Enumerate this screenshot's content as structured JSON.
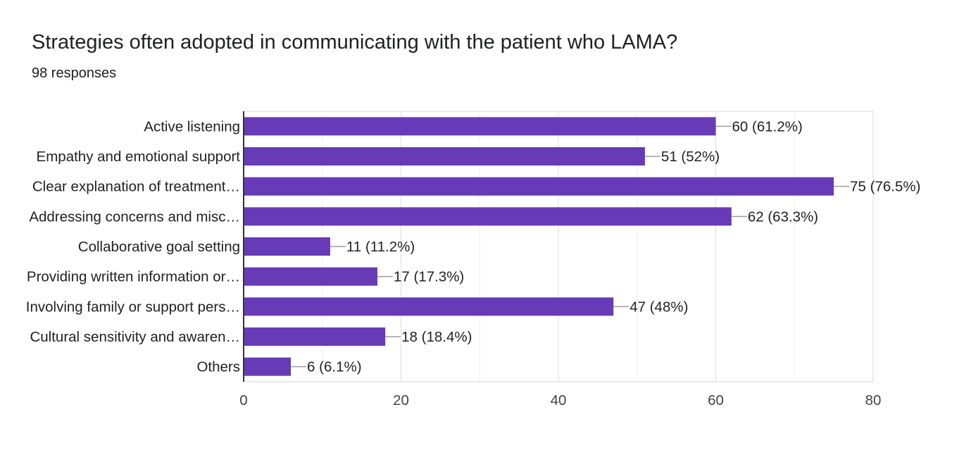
{
  "chart_data": {
    "type": "bar",
    "orientation": "horizontal",
    "title": "Strategies often adopted in communicating with the patient who LAMA?",
    "subtitle": "98 responses",
    "categories": [
      "Active listening",
      "Empathy and emotional support",
      "Clear explanation of treatment…",
      "Addressing concerns and misc…",
      "Collaborative goal setting",
      "Providing written information or…",
      "Involving family or support pers…",
      "Cultural sensitivity and awaren…",
      "Others"
    ],
    "values": [
      60,
      51,
      75,
      62,
      11,
      17,
      47,
      18,
      6
    ],
    "data_labels": [
      "60 (61.2%)",
      "51 (52%)",
      "75 (76.5%)",
      "62 (63.3%)",
      "11 (11.2%)",
      "17 (17.3%)",
      "47 (48%)",
      "18 (18.4%)",
      "6 (6.1%)"
    ],
    "xlim": [
      0,
      80
    ],
    "xticks": [
      0,
      20,
      40,
      60,
      80
    ],
    "grid": true,
    "bar_color": "#673ab7",
    "xlabel": "",
    "ylabel": ""
  }
}
